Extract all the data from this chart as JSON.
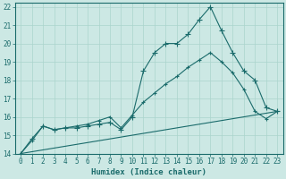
{
  "xlabel": "Humidex (Indice chaleur)",
  "bg_color": "#cce8e4",
  "grid_color": "#aad4cc",
  "line_color": "#1a6b6b",
  "xlim": [
    -0.5,
    23.5
  ],
  "ylim": [
    14,
    22.2
  ],
  "xticks": [
    0,
    1,
    2,
    3,
    4,
    5,
    6,
    7,
    8,
    9,
    10,
    11,
    12,
    13,
    14,
    15,
    16,
    17,
    18,
    19,
    20,
    21,
    22,
    23
  ],
  "yticks": [
    14,
    15,
    16,
    17,
    18,
    19,
    20,
    21,
    22
  ],
  "line1_x": [
    0,
    1,
    2,
    3,
    4,
    5,
    6,
    7,
    8,
    9,
    10,
    11,
    12,
    13,
    14,
    15,
    16,
    17,
    18,
    19,
    20,
    21,
    22,
    23
  ],
  "line1_y": [
    14.0,
    14.8,
    15.5,
    15.3,
    15.4,
    15.4,
    15.5,
    15.6,
    15.7,
    15.3,
    16.0,
    18.5,
    19.5,
    20.0,
    20.0,
    20.5,
    21.3,
    22.0,
    20.7,
    19.5,
    18.5,
    18.0,
    16.5,
    16.3
  ],
  "line2_x": [
    0,
    1,
    2,
    3,
    4,
    5,
    6,
    7,
    8,
    9,
    10,
    11,
    12,
    13,
    14,
    15,
    16,
    17,
    18,
    19,
    20,
    21,
    22,
    23
  ],
  "line2_y": [
    14.0,
    14.7,
    15.5,
    15.3,
    15.4,
    15.5,
    15.6,
    15.8,
    16.0,
    15.4,
    16.1,
    16.8,
    17.3,
    17.8,
    18.2,
    18.7,
    19.1,
    19.5,
    19.0,
    18.4,
    17.5,
    16.3,
    15.9,
    16.3
  ],
  "line3_x": [
    0,
    23
  ],
  "line3_y": [
    14.0,
    16.3
  ],
  "xlabel_fontsize": 6.5,
  "tick_fontsize": 5.5
}
